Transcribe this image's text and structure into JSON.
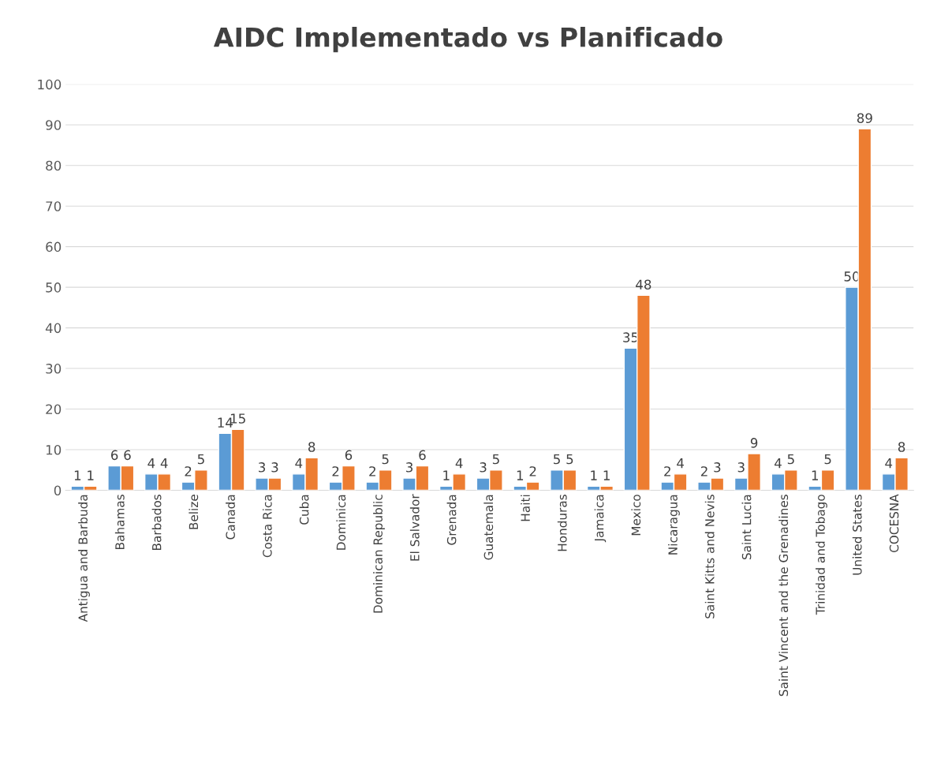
{
  "chart_data": {
    "type": "bar",
    "title": "AIDC Implementado vs Planificado",
    "categories": [
      "Antigua and Barbuda",
      "Bahamas",
      "Barbados",
      "Belize",
      "Canada",
      "Costa Rica",
      "Cuba",
      "Dominica",
      "Dominican Republic",
      "El Salvador",
      "Grenada",
      "Guatemala",
      "Haiti",
      "Honduras",
      "Jamaica",
      "Mexico",
      "Nicaragua",
      "Saint Kitts and Nevis",
      "Saint Lucia",
      "Saint Vincent and the Grenadines",
      "Trinidad and Tobago",
      "United States",
      "COCESNA"
    ],
    "series": [
      {
        "color": "#5b9bd5",
        "values": [
          1,
          6,
          4,
          2,
          14,
          3,
          4,
          2,
          2,
          3,
          1,
          3,
          1,
          5,
          1,
          35,
          2,
          2,
          3,
          4,
          1,
          50,
          4
        ]
      },
      {
        "color": "#ed7d31",
        "values": [
          1,
          6,
          4,
          5,
          15,
          3,
          8,
          6,
          5,
          6,
          4,
          5,
          2,
          5,
          1,
          48,
          4,
          3,
          9,
          5,
          5,
          89,
          8
        ]
      }
    ],
    "ylim": [
      0,
      100
    ],
    "yticks": [
      0,
      10,
      20,
      30,
      40,
      50,
      60,
      70,
      80,
      90,
      100
    ],
    "grid": "y",
    "data_labels": true
  }
}
